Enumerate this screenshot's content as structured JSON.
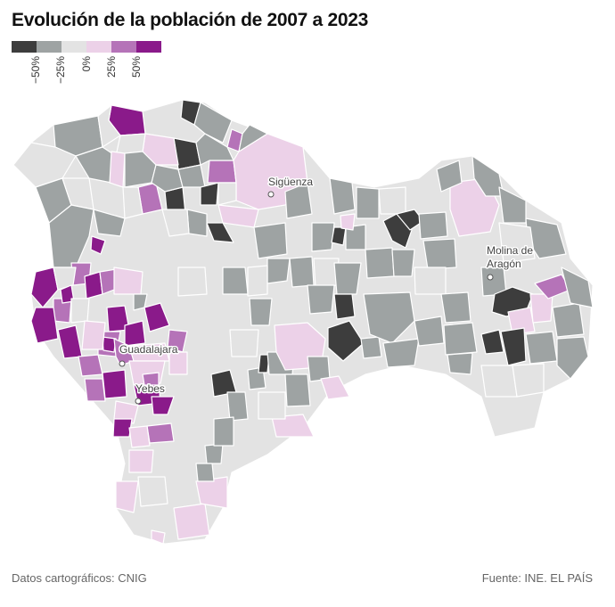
{
  "title": "Evolución de la población de 2007 a 2023",
  "legend": {
    "colors": [
      "#3d3d3d",
      "#9ea3a3",
      "#e3e3e3",
      "#ecd1e8",
      "#b573b8",
      "#8a1a8a"
    ],
    "labels": [
      "−50%",
      "−25%",
      "0%",
      "25%",
      "50%"
    ]
  },
  "cities": [
    {
      "name": "Sigüenza"
    },
    {
      "name": "Molina de"
    },
    {
      "name": "Aragón"
    },
    {
      "name": "Guadalajara"
    },
    {
      "name": "Yebes"
    }
  ],
  "footer": {
    "source_left": "Datos cartográficos: CNIG",
    "source_right": "Fuente: INE. EL PAÍS"
  }
}
